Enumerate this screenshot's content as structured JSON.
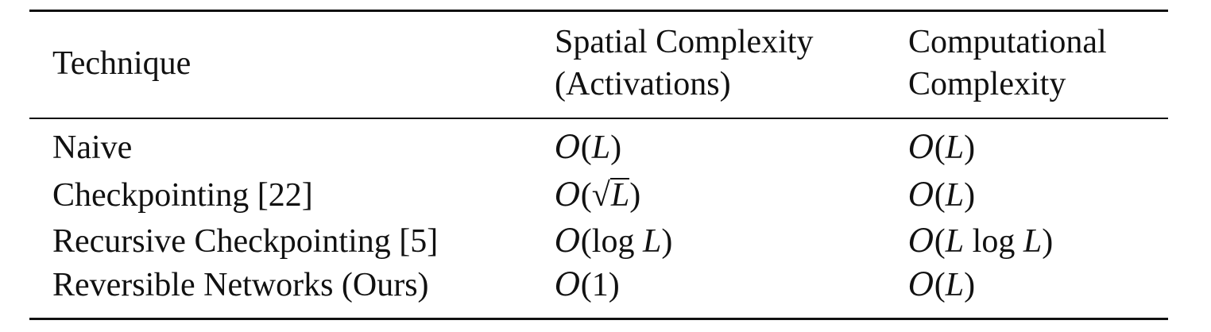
{
  "table": {
    "header": {
      "technique": "Technique",
      "spatial_line1": "Spatial Complexity",
      "spatial_line2": "(Activations)",
      "computational_line1": "Computational",
      "computational_line2": "Complexity"
    },
    "rows": [
      {
        "technique": "Naive",
        "spatial": {
          "cal": "O",
          "open": "(",
          "arg": "L",
          "close": ")"
        },
        "computational": {
          "cal": "O",
          "open": "(",
          "arg": "L",
          "close": ")"
        }
      },
      {
        "technique": "Checkpointing [22]",
        "spatial": {
          "cal": "O",
          "open": "(",
          "sqrt": "√",
          "arg": "L",
          "close": ")"
        },
        "computational": {
          "cal": "O",
          "open": "(",
          "arg": "L",
          "close": ")"
        }
      },
      {
        "technique": "Recursive Checkpointing [5]",
        "spatial": {
          "cal": "O",
          "open": "(",
          "fn": "log ",
          "arg": "L",
          "close": ")"
        },
        "computational": {
          "cal": "O",
          "open": "(",
          "arg": "L",
          "fn": " log ",
          "arg2": "L",
          "close": ")"
        }
      },
      {
        "technique": "Reversible Networks (Ours)",
        "spatial": {
          "cal": "O",
          "open": "(",
          "num": "1",
          "close": ")"
        },
        "computational": {
          "cal": "O",
          "open": "(",
          "arg": "L",
          "close": ")"
        }
      }
    ]
  }
}
